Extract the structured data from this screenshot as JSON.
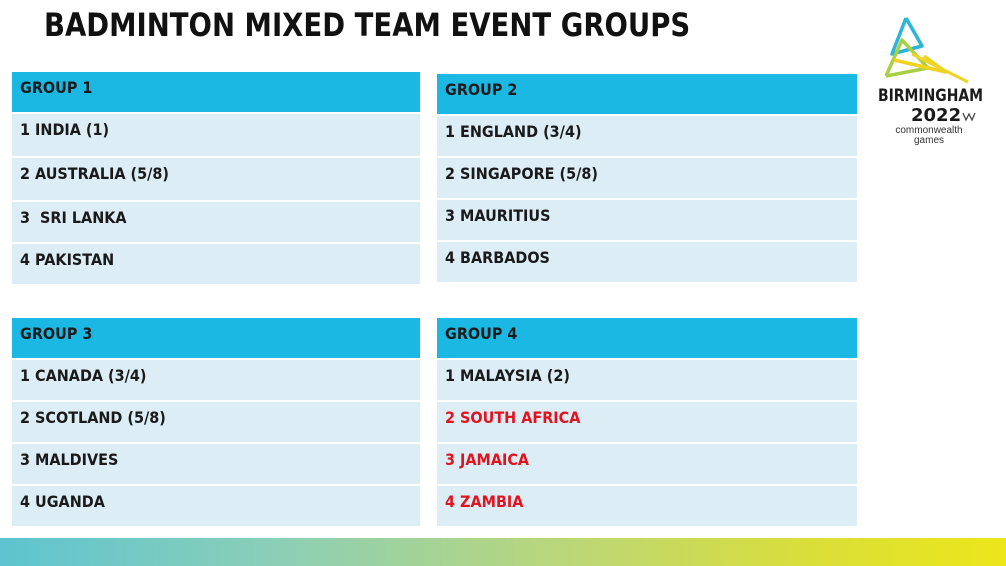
{
  "title": "BADMINTON MIXED TEAM EVENT GROUPS",
  "logo": {
    "city": "BIRMINGHAM",
    "year": "2022",
    "line1": "commonwealth",
    "line2": "games"
  },
  "groups": [
    {
      "header": "GROUP 1",
      "rows": [
        "1 INDIA (1)",
        "2 AUSTRALIA (5/8)",
        "3  SRI LANKA",
        "4 PAKISTAN"
      ]
    },
    {
      "header": "GROUP 2",
      "rows": [
        "1 ENGLAND (3/4)",
        "2 SINGAPORE (5/8)",
        "3 MAURITIUS",
        "4 BARBADOS"
      ]
    },
    {
      "header": "GROUP 3",
      "rows": [
        "1 CANADA (3/4)",
        "2 SCOTLAND (5/8)",
        "3 MALDIVES",
        "4 UGANDA"
      ]
    },
    {
      "header": "GROUP 4",
      "rows": [
        "1 MALAYSIA (2)",
        "2 SOUTH AFRICA",
        "3 JAMAICA",
        "4 ZAMBIA"
      ]
    }
  ],
  "colors": {
    "header_blue": "#1bb8e4",
    "row_light": "#dcedf6",
    "highlight_red": "#e0141e"
  }
}
